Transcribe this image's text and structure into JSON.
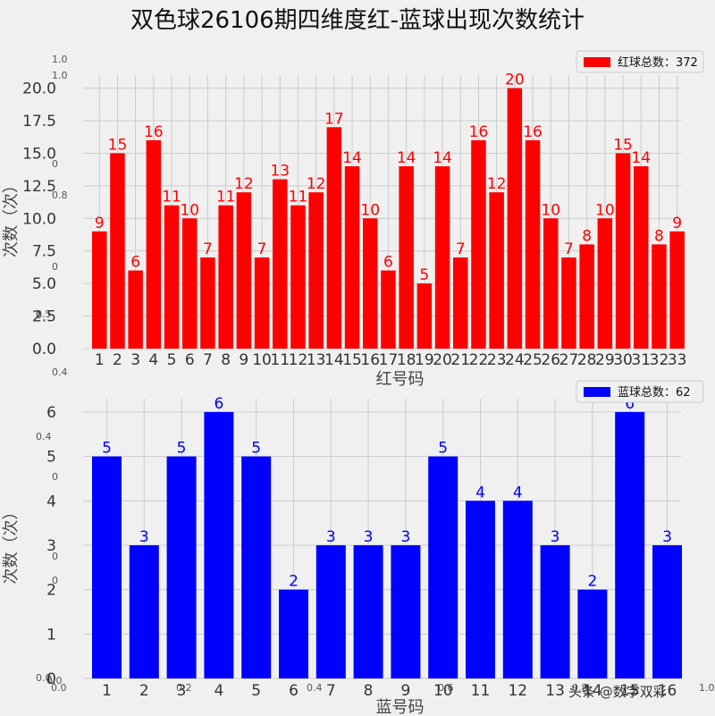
{
  "title": "双色球26106期四维度红-蓝球出现次数统计",
  "watermark": "头条 @数字双彩",
  "ghost_ticks": {
    "top_left": [
      "1.0",
      "1.0",
      "0",
      "0.8",
      "0",
      "0.5",
      "0",
      "0.4"
    ],
    "bottom_left": [
      "0.4",
      "0",
      "0",
      "0",
      "0.0",
      "0.0"
    ],
    "bottom_x": [
      "0.0",
      "0.2",
      "0.4",
      "0.6",
      "0.8",
      "1.0"
    ]
  },
  "chart_data": [
    {
      "type": "bar",
      "xlabel": "红号码",
      "ylabel": "次数（次）",
      "ylim": [
        0,
        21
      ],
      "yticks": [
        "0.0",
        "2.5",
        "5.0",
        "7.5",
        "10.0",
        "12.5",
        "15.0",
        "17.5",
        "20.0"
      ],
      "ytick_values": [
        0,
        2.5,
        5,
        7.5,
        10,
        12.5,
        15,
        17.5,
        20
      ],
      "categories": [
        "1",
        "2",
        "3",
        "4",
        "5",
        "6",
        "7",
        "8",
        "9",
        "10",
        "11",
        "12",
        "13",
        "14",
        "15",
        "16",
        "17",
        "18",
        "19",
        "20",
        "21",
        "22",
        "23",
        "24",
        "25",
        "26",
        "27",
        "28",
        "29",
        "30",
        "31",
        "32",
        "33"
      ],
      "series": [
        {
          "name": "红球总数：372",
          "color": "#ff0000",
          "values": [
            9,
            15,
            6,
            16,
            11,
            10,
            7,
            11,
            12,
            7,
            13,
            11,
            12,
            17,
            14,
            10,
            6,
            14,
            5,
            14,
            7,
            16,
            12,
            20,
            16,
            10,
            7,
            8,
            10,
            15,
            14,
            8,
            9
          ]
        }
      ],
      "legend": "top-right",
      "grid": true
    },
    {
      "type": "bar",
      "xlabel": "蓝号码",
      "ylabel": "次数（次）",
      "ylim": [
        0,
        6.3
      ],
      "yticks": [
        "0",
        "1",
        "2",
        "3",
        "4",
        "5",
        "6"
      ],
      "ytick_values": [
        0,
        1,
        2,
        3,
        4,
        5,
        6
      ],
      "categories": [
        "1",
        "2",
        "3",
        "4",
        "5",
        "6",
        "7",
        "8",
        "9",
        "10",
        "11",
        "12",
        "13",
        "14",
        "15",
        "16"
      ],
      "series": [
        {
          "name": "蓝球总数：62",
          "color": "#0000ff",
          "values": [
            5,
            3,
            5,
            6,
            5,
            2,
            3,
            3,
            3,
            5,
            4,
            4,
            3,
            2,
            6,
            3
          ]
        }
      ],
      "legend": "top-right",
      "grid": true
    }
  ]
}
